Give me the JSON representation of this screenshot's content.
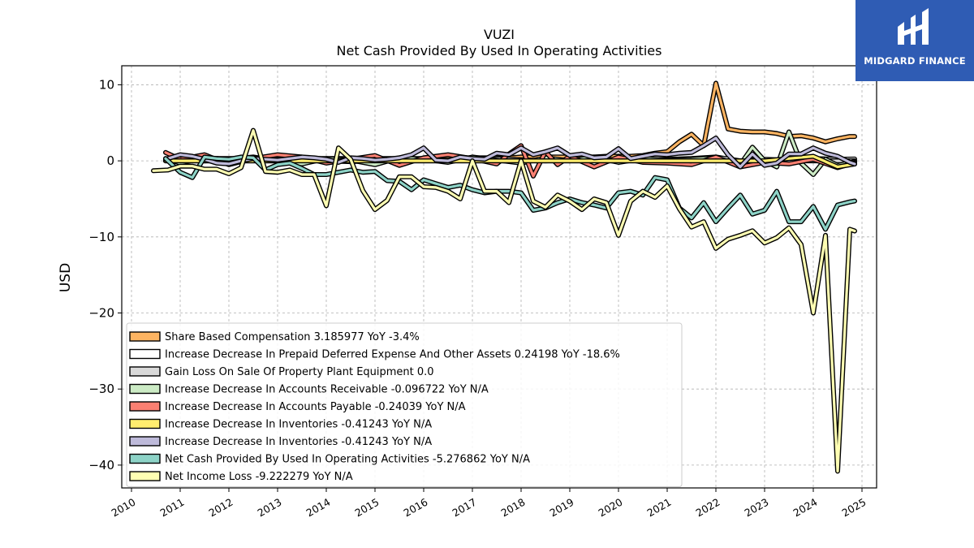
{
  "chart_data": {
    "type": "line",
    "title": "VUZI",
    "subtitle": "Net Cash Provided By Used In Operating Activities",
    "xlabel": "",
    "ylabel": "USD",
    "xlim": [
      2009.8,
      2025.3
    ],
    "ylim": [
      -43,
      12.5
    ],
    "yticks": [
      10,
      0,
      -10,
      -20,
      -30,
      -40
    ],
    "ytick_labels": [
      "10",
      "0",
      "−10",
      "−20",
      "−30",
      "−40"
    ],
    "xticks": [
      2010,
      2011,
      2012,
      2013,
      2014,
      2015,
      2016,
      2017,
      2018,
      2019,
      2020,
      2021,
      2022,
      2023,
      2024,
      2025
    ],
    "xtick_labels": [
      "2010",
      "2011",
      "2012",
      "2013",
      "2014",
      "2015",
      "2016",
      "2017",
      "2018",
      "2019",
      "2020",
      "2021",
      "2022",
      "2023",
      "2024",
      "2025"
    ],
    "grid": true,
    "legend_position": "lower-left",
    "series": [
      {
        "name": "Share Based Compensation",
        "legend_label": "Share Based Compensation  3.185977 YoY -3.4%",
        "color": "#fdb462",
        "x": [
          2010.7,
          2011.0,
          2011.25,
          2011.5,
          2011.75,
          2012.0,
          2012.25,
          2012.5,
          2012.75,
          2013.0,
          2013.25,
          2013.5,
          2013.75,
          2014.0,
          2014.25,
          2014.5,
          2014.75,
          2015.0,
          2015.25,
          2015.5,
          2015.75,
          2016.0,
          2016.25,
          2016.5,
          2016.75,
          2017.0,
          2017.25,
          2017.5,
          2017.75,
          2018.0,
          2018.25,
          2018.5,
          2018.75,
          2019.0,
          2019.25,
          2019.5,
          2019.75,
          2020.0,
          2020.25,
          2020.5,
          2020.75,
          2021.0,
          2021.25,
          2021.5,
          2021.75,
          2022.0,
          2022.25,
          2022.5,
          2022.75,
          2023.0,
          2023.25,
          2023.5,
          2023.75,
          2024.0,
          2024.25,
          2024.5,
          2024.75,
          2024.85
        ],
        "y": [
          0.1,
          0.2,
          0.2,
          0.3,
          0.3,
          0.3,
          0.3,
          0.3,
          0.3,
          0.3,
          0.3,
          0.3,
          0.3,
          0.3,
          0.3,
          0.3,
          0.3,
          0.3,
          0.3,
          0.3,
          0.3,
          0.3,
          0.3,
          0.4,
          0.4,
          0.4,
          0.4,
          0.4,
          0.4,
          0.5,
          0.5,
          0.5,
          0.5,
          0.5,
          0.5,
          0.5,
          0.6,
          0.6,
          0.6,
          0.7,
          1.0,
          1.2,
          2.5,
          3.5,
          2.0,
          10.2,
          4.2,
          3.9,
          3.8,
          3.8,
          3.6,
          3.2,
          3.3,
          3.0,
          2.5,
          2.9,
          3.2,
          3.2
        ]
      },
      {
        "name": "Increase Decrease In Prepaid Deferred Expense And Other Assets",
        "legend_label": "Increase Decrease In Prepaid Deferred Expense And Other Assets  0.24198 YoY -18.6%",
        "color": "#ffffff",
        "x": [
          2010.7,
          2011.5,
          2012.5,
          2013.5,
          2014.5,
          2015.5,
          2016.5,
          2017.5,
          2018.5,
          2019.5,
          2020.5,
          2021.5,
          2022.0,
          2022.5,
          2023.0,
          2023.5,
          2024.0,
          2024.5,
          2024.85
        ],
        "y": [
          0.1,
          0.0,
          0.2,
          0.1,
          -0.1,
          0.2,
          0.1,
          0.3,
          0.0,
          0.2,
          0.1,
          0.3,
          0.5,
          0.0,
          0.2,
          0.1,
          0.3,
          0.2,
          0.24
        ]
      },
      {
        "name": "Gain Loss On Sale Of Property Plant Equipment",
        "legend_label": "Gain Loss On Sale Of Property Plant Equipment  0.0",
        "color": "#d9d9d9",
        "x": [
          2010.7,
          2012.0,
          2014.0,
          2016.0,
          2018.0,
          2020.0,
          2022.0,
          2024.0,
          2024.85
        ],
        "y": [
          0,
          0,
          0,
          0,
          0,
          0,
          0,
          0,
          0
        ]
      },
      {
        "name": "Increase Decrease In Accounts Receivable",
        "legend_label": "Increase Decrease In Accounts Receivable  -0.096722 YoY N/A",
        "color": "#ccebc5",
        "x": [
          2010.7,
          2011.0,
          2011.5,
          2012.0,
          2012.5,
          2013.0,
          2013.5,
          2014.0,
          2014.5,
          2015.0,
          2015.5,
          2016.0,
          2016.5,
          2017.0,
          2017.5,
          2018.0,
          2018.5,
          2019.0,
          2019.5,
          2020.0,
          2020.5,
          2021.0,
          2021.5,
          2022.0,
          2022.5,
          2022.75,
          2023.0,
          2023.25,
          2023.5,
          2023.75,
          2024.0,
          2024.25,
          2024.5,
          2024.85
        ],
        "y": [
          0.3,
          -0.3,
          0.4,
          0.2,
          0.5,
          0.0,
          -0.4,
          0.3,
          0.1,
          -0.5,
          0.4,
          0.2,
          -0.2,
          0.5,
          0.1,
          -0.3,
          0.4,
          0.0,
          0.5,
          -0.2,
          0.3,
          0.1,
          0.2,
          0.4,
          -0.5,
          1.8,
          0.0,
          -0.8,
          3.8,
          -0.3,
          -1.8,
          0.2,
          -0.6,
          -0.1
        ]
      },
      {
        "name": "Increase Decrease In Accounts Payable",
        "legend_label": "Increase Decrease In Accounts Payable  -0.24039 YoY N/A",
        "color": "#fb8072",
        "x": [
          2010.7,
          2011.0,
          2011.5,
          2012.0,
          2012.5,
          2013.0,
          2013.5,
          2014.0,
          2014.5,
          2015.0,
          2015.5,
          2016.0,
          2016.5,
          2017.0,
          2017.5,
          2017.75,
          2018.0,
          2018.25,
          2018.5,
          2018.75,
          2019.0,
          2019.5,
          2020.0,
          2020.5,
          2021.0,
          2021.5,
          2022.0,
          2022.5,
          2023.0,
          2023.5,
          2024.0,
          2024.5,
          2024.85
        ],
        "y": [
          1.1,
          0.2,
          0.8,
          -0.5,
          0.3,
          0.8,
          0.5,
          -0.3,
          0.2,
          0.7,
          -0.6,
          0.4,
          0.8,
          0.3,
          -0.4,
          0.9,
          2.0,
          -2.0,
          1.2,
          -0.5,
          0.6,
          -0.8,
          0.5,
          -0.2,
          -0.3,
          -0.5,
          0.5,
          -0.8,
          -0.2,
          -0.4,
          0.2,
          -0.9,
          -0.24
        ]
      },
      {
        "name": "Increase Decrease In Inventories",
        "legend_label": "Increase Decrease In Inventories  -0.41243 YoY N/A",
        "color": "#ffed6f",
        "x": [
          2010.7,
          2012.0,
          2014.0,
          2016.0,
          2018.0,
          2020.0,
          2022.0,
          2023.0,
          2023.5,
          2024.0,
          2024.5,
          2024.85
        ],
        "y": [
          0,
          0,
          0,
          0,
          0,
          0,
          0,
          0,
          0.3,
          0.6,
          -0.8,
          -0.41
        ]
      },
      {
        "name": "Increase Decrease In Inventories",
        "legend_label": "Increase Decrease In Inventories  -0.41243 YoY N/A",
        "color": "#bebada",
        "x": [
          2010.7,
          2011.0,
          2011.25,
          2011.5,
          2011.75,
          2012.0,
          2012.25,
          2012.5,
          2012.75,
          2013.0,
          2013.25,
          2013.5,
          2013.75,
          2014.0,
          2014.25,
          2014.5,
          2014.75,
          2015.0,
          2015.25,
          2015.5,
          2015.75,
          2016.0,
          2016.25,
          2016.5,
          2016.75,
          2017.0,
          2017.25,
          2017.5,
          2017.75,
          2018.0,
          2018.25,
          2018.5,
          2018.75,
          2019.0,
          2019.25,
          2019.5,
          2019.75,
          2020.0,
          2020.25,
          2020.5,
          2020.75,
          2021.0,
          2021.25,
          2021.5,
          2021.75,
          2022.0,
          2022.25,
          2022.5,
          2022.75,
          2023.0,
          2023.25,
          2023.5,
          2023.75,
          2024.0,
          2024.25,
          2024.5,
          2024.75,
          2024.85
        ],
        "y": [
          0.2,
          0.8,
          0.6,
          0.2,
          -0.3,
          -0.4,
          0.0,
          0.3,
          0.2,
          0.1,
          0.3,
          0.5,
          0.4,
          0.2,
          -0.2,
          0.4,
          0.3,
          0.1,
          0.2,
          0.4,
          0.8,
          1.7,
          0.1,
          0.0,
          0.5,
          0.3,
          0.2,
          1.0,
          0.8,
          1.7,
          0.8,
          1.2,
          1.7,
          0.7,
          0.9,
          0.4,
          0.5,
          1.6,
          0.3,
          0.6,
          0.9,
          0.8,
          1.0,
          1.1,
          2.0,
          3.0,
          0.8,
          -0.8,
          0.9,
          -0.6,
          -0.3,
          0.9,
          0.9,
          1.7,
          1.0,
          0.6,
          -0.2,
          -0.41
        ]
      },
      {
        "name": "Net Cash Provided By Used In Operating Activities",
        "legend_label": "Net Cash Provided By Used In Operating Activities  -5.276862 YoY N/A",
        "color": "#8dd3c7",
        "x": [
          2010.7,
          2011.0,
          2011.25,
          2011.5,
          2011.75,
          2012.0,
          2012.25,
          2012.5,
          2012.75,
          2013.0,
          2013.25,
          2013.5,
          2013.75,
          2014.0,
          2014.25,
          2014.5,
          2014.75,
          2015.0,
          2015.25,
          2015.5,
          2015.75,
          2016.0,
          2016.25,
          2016.5,
          2016.75,
          2017.0,
          2017.25,
          2017.5,
          2017.75,
          2018.0,
          2018.25,
          2018.5,
          2018.75,
          2019.0,
          2019.25,
          2019.5,
          2019.75,
          2020.0,
          2020.25,
          2020.5,
          2020.75,
          2021.0,
          2021.25,
          2021.5,
          2021.75,
          2022.0,
          2022.25,
          2022.5,
          2022.75,
          2023.0,
          2023.25,
          2023.5,
          2023.75,
          2024.0,
          2024.25,
          2024.5,
          2024.75,
          2024.85
        ],
        "y": [
          0.3,
          -1.5,
          -2.2,
          0.5,
          0.3,
          0.2,
          0.5,
          0.4,
          -1.2,
          -0.5,
          -0.3,
          -1.0,
          -1.8,
          -1.8,
          -1.5,
          -1.2,
          -1.5,
          -1.4,
          -2.6,
          -2.7,
          -3.8,
          -2.5,
          -3.0,
          -3.5,
          -3.2,
          -3.8,
          -4.2,
          -4.0,
          -4.0,
          -4.2,
          -6.5,
          -6.2,
          -5.5,
          -5.0,
          -5.5,
          -5.8,
          -6.2,
          -4.2,
          -4.0,
          -4.5,
          -2.2,
          -2.5,
          -6.2,
          -7.5,
          -5.5,
          -8.0,
          -6.2,
          -4.5,
          -7.0,
          -6.5,
          -4.0,
          -8.0,
          -8.0,
          -6.0,
          -9.0,
          -5.8,
          -5.4,
          -5.28
        ]
      },
      {
        "name": "Net Income Loss",
        "legend_label": "Net Income Loss  -9.222279 YoY N/A",
        "color": "#ffffb3",
        "x": [
          2010.45,
          2010.75,
          2011.0,
          2011.25,
          2011.5,
          2011.75,
          2012.0,
          2012.25,
          2012.5,
          2012.75,
          2013.0,
          2013.25,
          2013.5,
          2013.75,
          2014.0,
          2014.25,
          2014.5,
          2014.75,
          2015.0,
          2015.25,
          2015.5,
          2015.75,
          2016.0,
          2016.25,
          2016.5,
          2016.75,
          2017.0,
          2017.25,
          2017.5,
          2017.75,
          2018.0,
          2018.25,
          2018.5,
          2018.75,
          2019.0,
          2019.25,
          2019.5,
          2019.75,
          2020.0,
          2020.25,
          2020.5,
          2020.75,
          2021.0,
          2021.25,
          2021.5,
          2021.75,
          2022.0,
          2022.25,
          2022.5,
          2022.75,
          2023.0,
          2023.25,
          2023.5,
          2023.75,
          2024.0,
          2024.25,
          2024.5,
          2024.75,
          2024.85
        ],
        "y": [
          -1.3,
          -1.2,
          -0.7,
          -0.7,
          -1.1,
          -1.1,
          -1.7,
          -0.9,
          4.0,
          -1.4,
          -1.5,
          -1.2,
          -1.8,
          -1.8,
          -5.9,
          1.7,
          0.2,
          -3.9,
          -6.4,
          -5.2,
          -2.1,
          -2.1,
          -3.4,
          -3.5,
          -4.0,
          -5.0,
          0.0,
          -4.0,
          -4.0,
          -5.5,
          0.0,
          -5.3,
          -6.1,
          -4.5,
          -5.3,
          -6.4,
          -5.0,
          -5.5,
          -9.8,
          -5.3,
          -4.0,
          -4.8,
          -3.3,
          -6.3,
          -8.7,
          -8.0,
          -11.5,
          -10.3,
          -9.8,
          -9.2,
          -10.8,
          -10.1,
          -8.8,
          -11.0,
          -20.0,
          -9.8,
          -40.8,
          -9.0,
          -9.22
        ]
      }
    ]
  },
  "logo": {
    "text": "MIDGARD FINANCE"
  }
}
